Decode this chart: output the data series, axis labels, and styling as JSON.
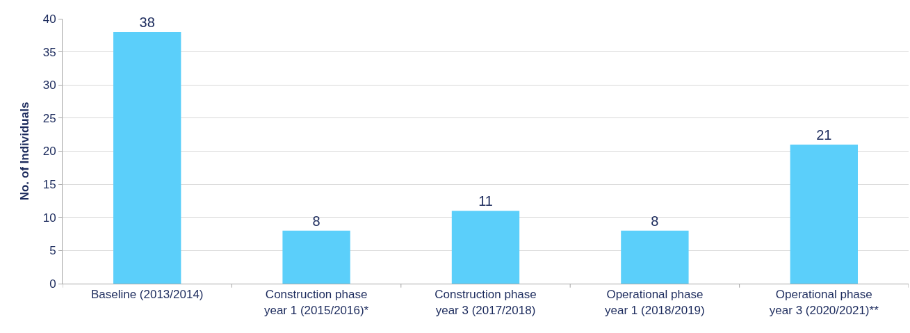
{
  "chart_data": {
    "type": "bar",
    "ylabel": "No. of Individuals",
    "categories": [
      "Baseline (2013/2014)",
      "Construction phase\nyear 1 (2015/2016)*",
      "Construction phase\nyear 3 (2017/2018)",
      "Operational phase\nyear 1 (2018/2019)",
      "Operational phase\nyear 3 (2020/2021)**"
    ],
    "values": [
      38,
      8,
      11,
      8,
      21
    ],
    "color": "#5bcffa",
    "ylim": [
      0,
      40
    ],
    "yticks": [
      0,
      5,
      10,
      15,
      20,
      25,
      30,
      35,
      40
    ],
    "grid": "y",
    "data_labels": true,
    "legend": false
  }
}
